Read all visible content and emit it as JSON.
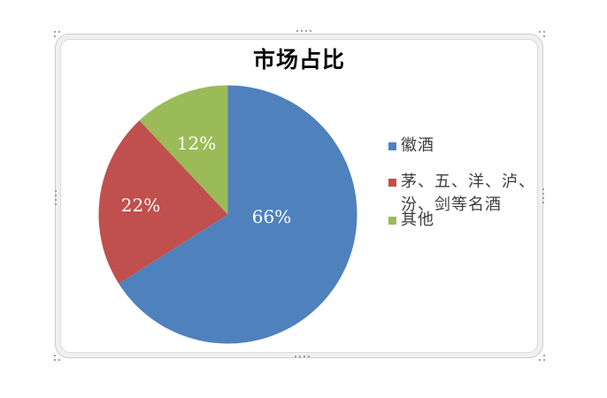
{
  "chart_data": {
    "type": "pie",
    "title": "市场占比",
    "categories": [
      "徽酒",
      "茅、五、洋、泸、汾、剑等名酒",
      "其他"
    ],
    "values": [
      66,
      22,
      12
    ],
    "data_labels": [
      "66%",
      "22%",
      "12%"
    ],
    "colors": [
      "#4F81BD",
      "#C0504D",
      "#9BBB59"
    ],
    "start_angle_deg": 0,
    "direction": "clockwise",
    "legend_position": "right",
    "data_label_color": "#FFFFFF",
    "background": "#FFFFFF"
  }
}
